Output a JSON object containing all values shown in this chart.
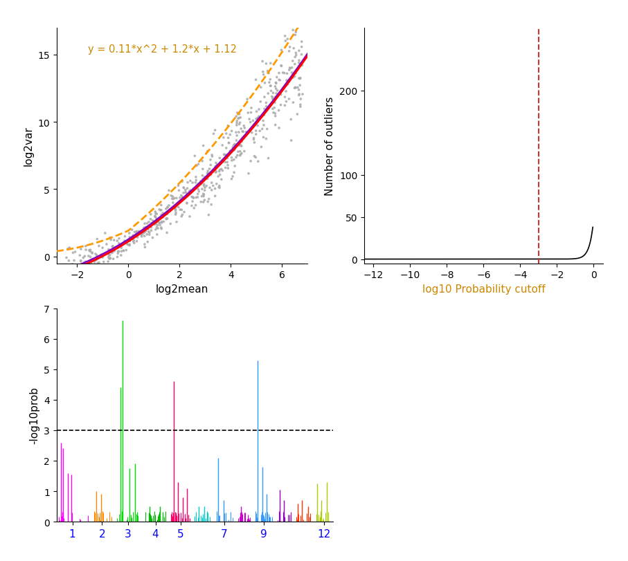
{
  "plot1": {
    "xlabel": "log2mean",
    "ylabel": "log2var",
    "equation": "y = 0.11*x^2 + 1.2*x + 1.12",
    "equation_color": "#CC8800",
    "scatter_color": "#AAAAAA",
    "curve_red_color": "#FF0000",
    "curve_purple_color": "#8800BB",
    "curve_orange_color": "#FF9900",
    "xlim": [
      -2.8,
      7.0
    ],
    "ylim": [
      -0.5,
      17
    ],
    "xticks": [
      -2,
      0,
      2,
      4,
      6
    ],
    "yticks": [
      0,
      5,
      10,
      15
    ],
    "a": 0.11,
    "b": 1.2,
    "c": 1.12
  },
  "plot2": {
    "xlabel": "log10 Probability cutoff",
    "xlabel_color": "#CC8800",
    "ylabel": "Number of outliers",
    "xlim": [
      -12.5,
      0.5
    ],
    "ylim": [
      -5,
      275
    ],
    "xticks": [
      -12,
      -10,
      -8,
      -6,
      -4,
      -2,
      0
    ],
    "yticks": [
      0,
      50,
      100,
      200
    ],
    "vline_x": -3.0,
    "vline_color": "#CC3333"
  },
  "plot3": {
    "ylabel": "-log10prob",
    "ylim": [
      0,
      7
    ],
    "yticks": [
      0,
      1,
      2,
      3,
      4,
      5,
      6,
      7
    ],
    "hline_y": 3.0,
    "chr_labels": [
      1,
      2,
      3,
      4,
      5,
      7,
      9,
      12
    ],
    "chr_colors": {
      "1": "#FF00FF",
      "2": "#FF8800",
      "3": "#00DD00",
      "4": "#00BB00",
      "5": "#FF0066",
      "6": "#00CCCC",
      "7": "#3399FF",
      "8": "#CC00CC",
      "9": "#3399FF",
      "10": "#9900CC",
      "11": "#FF3300",
      "12": "#AACC00"
    }
  }
}
